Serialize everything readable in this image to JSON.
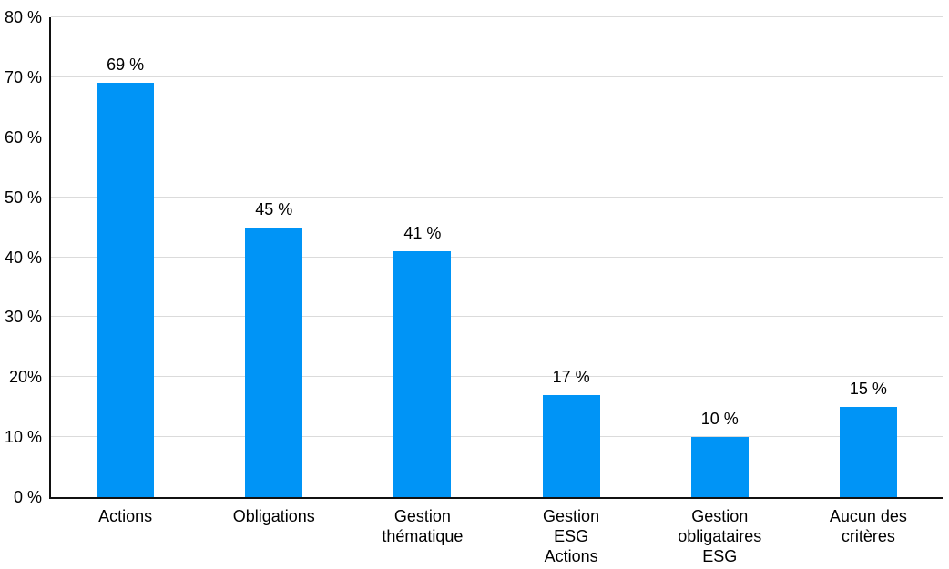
{
  "chart_data": {
    "type": "bar",
    "title": "",
    "xlabel": "",
    "ylabel": "",
    "ylim": [
      0,
      80
    ],
    "grid": true,
    "legend": false,
    "categories": [
      "Actions",
      "Obligations",
      "Gestion\nthématique",
      "Gestion\nESG\nActions",
      "Gestion\nobligataires\nESG",
      "Aucun des\ncritères"
    ],
    "values": [
      69,
      45,
      41,
      17,
      10,
      15
    ],
    "value_labels": [
      "69 %",
      "45 %",
      "41 %",
      "17 %",
      "10 %",
      "15 %"
    ],
    "y_tick_values": [
      0,
      10,
      20,
      30,
      40,
      50,
      60,
      70,
      80
    ],
    "y_tick_labels": [
      "0 %",
      "10 %",
      "20%",
      "30 %",
      "40 %",
      "50 %",
      "60 %",
      "70 %",
      "80 %"
    ],
    "colors": {
      "bar": "#0094F6",
      "gridline": "#DBDBDB",
      "axis": "#111111",
      "text": "#000000",
      "background": "#FFFFFF"
    }
  }
}
